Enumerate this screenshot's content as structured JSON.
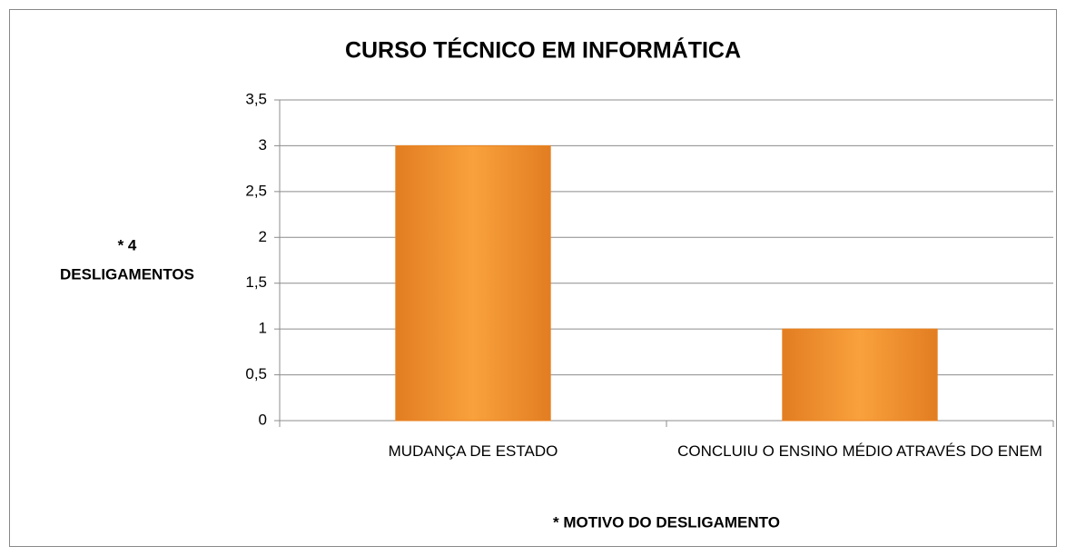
{
  "chart_data": {
    "type": "bar",
    "title": "CURSO TÉCNICO EM INFORMÁTICA",
    "y_label": [
      "* 4",
      "DESLIGAMENTOS"
    ],
    "x_label": "* MOTIVO DO DESLIGAMENTO",
    "categories": [
      "MUDANÇA DE ESTADO",
      "CONCLUIU O ENSINO MÉDIO ATRAVÉS DO ENEM"
    ],
    "values": [
      3,
      1
    ],
    "color": "#f39433",
    "ylim": [
      0,
      3.5
    ],
    "yticks": [
      0,
      {
        "value": 0.5,
        "label": "0,5"
      },
      1,
      {
        "value": 1.5,
        "label": "1,5"
      },
      2,
      {
        "value": 2.5,
        "label": "2,5"
      },
      3,
      {
        "value": 3.5,
        "label": "3,5"
      }
    ],
    "grid": true
  }
}
